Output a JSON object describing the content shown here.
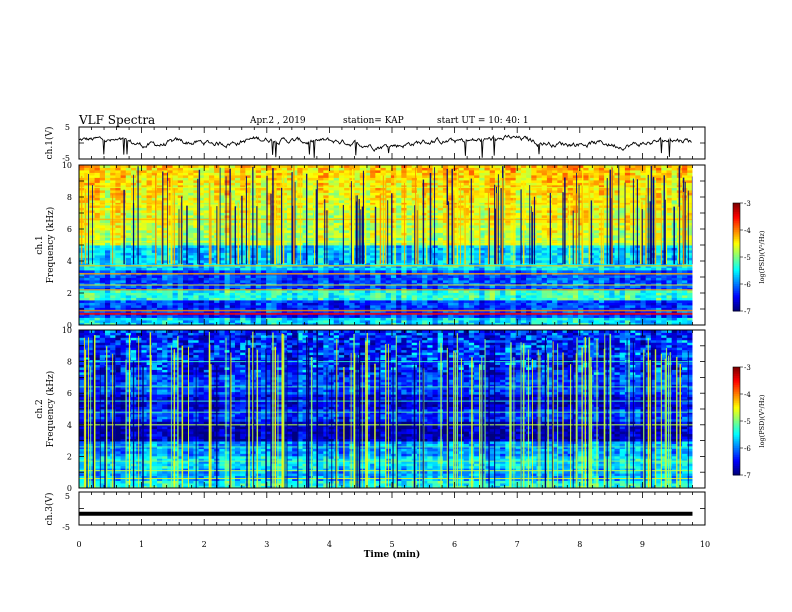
{
  "header": {
    "title": "VLF Spectra",
    "date": "Apr.2 , 2019",
    "station": "station= KAP",
    "start": "start UT =   10: 40: 1"
  },
  "chart_data": [
    {
      "type": "line",
      "name": "ch1-waveform",
      "ylabel": "ch.1(V)",
      "ylim": [
        -5,
        5
      ],
      "yticks": [
        "5",
        "-5"
      ],
      "xlim": [
        0,
        10
      ],
      "note_level": 0.2
    },
    {
      "type": "heatmap",
      "name": "ch1-spectrogram",
      "ylabel": "ch.1\nFrequency (kHz)",
      "ylim": [
        0,
        10
      ],
      "yticks": [
        "0",
        "2",
        "4",
        "6",
        "8",
        "10"
      ],
      "xlim": [
        0,
        9.8
      ],
      "colorbar": {
        "range": [
          -7,
          -3
        ],
        "ticks": [
          "-3",
          "-4",
          "-5",
          "-6",
          "-7"
        ],
        "label": "log(PSD)(V²/Hz)"
      }
    },
    {
      "type": "heatmap",
      "name": "ch2-spectrogram",
      "ylabel": "ch.2\nFrequency (kHz)",
      "ylim": [
        0,
        10
      ],
      "yticks": [
        "0",
        "2",
        "4",
        "6",
        "8",
        "10"
      ],
      "xlim": [
        0,
        9.8
      ],
      "colorbar": {
        "range": [
          -7,
          -3
        ],
        "ticks": [
          "-3",
          "-4",
          "-5",
          "-6",
          "-7"
        ],
        "label": "log(PSD)(V²/Hz)"
      }
    },
    {
      "type": "line",
      "name": "ch3-waveform",
      "ylabel": "ch.3(V)",
      "ylim": [
        -5,
        5
      ],
      "yticks": [
        "5",
        "-5"
      ],
      "xlim": [
        0,
        9.8
      ],
      "level": -1.6
    }
  ],
  "xaxis": {
    "label": "Time (min)",
    "ticks": [
      "0",
      "1",
      "2",
      "3",
      "4",
      "5",
      "6",
      "7",
      "8",
      "9",
      "10"
    ]
  }
}
